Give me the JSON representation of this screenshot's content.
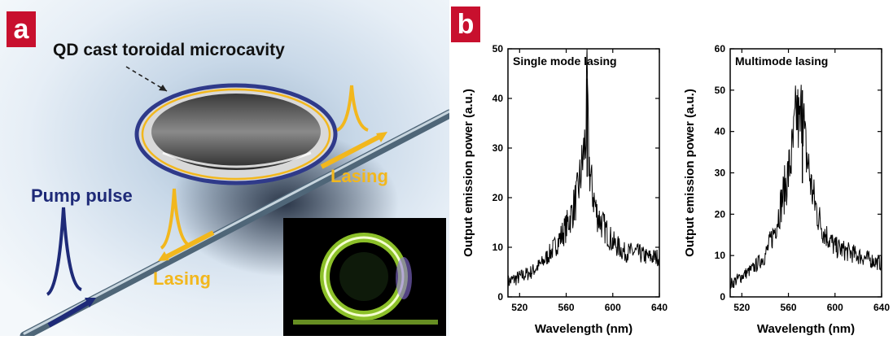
{
  "panel_a": {
    "badge": "a",
    "title": "QD cast toroidal microcavity",
    "label_pump": "Pump pulse",
    "label_lasing_right": "Lasing",
    "label_lasing_left": "Lasing",
    "colors": {
      "lasing": "#f2b71d",
      "pump": "#1e2a78",
      "badge": "#c8102e"
    }
  },
  "panel_b": {
    "badge": "b"
  },
  "chart_data": [
    {
      "type": "line",
      "title": "Single mode lasing",
      "xlabel": "Wavelength (nm)",
      "ylabel": "Output emission power (a.u.)",
      "xlim": [
        510,
        640
      ],
      "ylim": [
        0,
        50
      ],
      "xticks": [
        520,
        560,
        600,
        640
      ],
      "yticks": [
        0,
        10,
        20,
        30,
        40,
        50
      ],
      "series": [
        {
          "x": [
            510,
            520,
            530,
            540,
            550,
            560,
            565,
            570,
            574,
            577,
            578,
            579,
            580,
            582,
            586,
            590,
            600,
            610,
            620,
            630,
            640
          ],
          "values": [
            3,
            4,
            5,
            7,
            10,
            14,
            17,
            21,
            27,
            33,
            44,
            30,
            26,
            22,
            17,
            15,
            11,
            9,
            9,
            8,
            8
          ]
        }
      ]
    },
    {
      "type": "line",
      "title": "Multimode lasing",
      "xlabel": "Wavelength (nm)",
      "ylabel": "Output emission power (a.u.)",
      "xlim": [
        510,
        640
      ],
      "ylim": [
        0,
        60
      ],
      "xticks": [
        520,
        560,
        600,
        640
      ],
      "yticks": [
        0,
        10,
        20,
        30,
        40,
        50,
        60
      ],
      "series": [
        {
          "x": [
            510,
            520,
            530,
            540,
            548,
            555,
            560,
            564,
            567,
            570,
            572,
            574,
            577,
            580,
            585,
            590,
            600,
            610,
            620,
            630,
            640
          ],
          "values": [
            3,
            5,
            7,
            10,
            16,
            24,
            30,
            36,
            45,
            40,
            50,
            37,
            32,
            26,
            20,
            16,
            12,
            11,
            10,
            9,
            8
          ]
        }
      ]
    }
  ]
}
